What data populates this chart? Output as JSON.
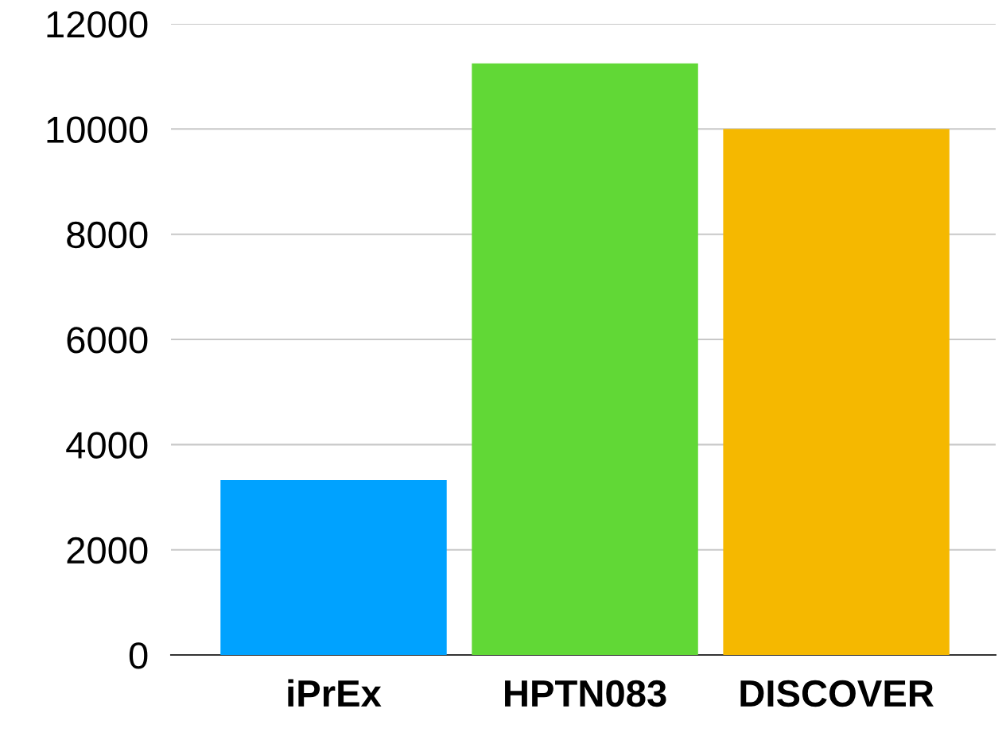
{
  "chart_data": {
    "type": "bar",
    "categories": [
      "iPrEx",
      "HPTN083",
      "DISCOVER"
    ],
    "values": [
      3325,
      11250,
      10000
    ],
    "colors": [
      "#00a2ff",
      "#61d836",
      "#f5b800"
    ],
    "ylim": [
      0,
      12000
    ],
    "yticks": [
      0,
      2000,
      4000,
      6000,
      8000,
      10000,
      12000
    ],
    "grid": "y"
  }
}
